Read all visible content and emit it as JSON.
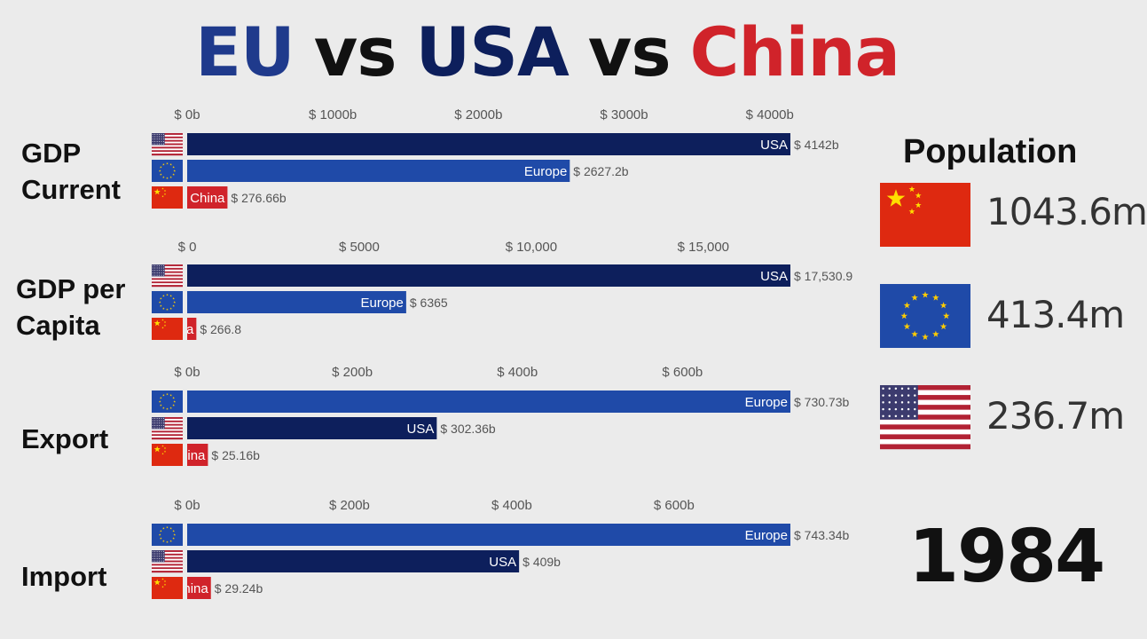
{
  "title": {
    "parts": [
      {
        "text": "EU",
        "color": "#1f3a8c"
      },
      {
        "text": "vs",
        "color": "#111111"
      },
      {
        "text": "USA",
        "color": "#0d1f5c"
      },
      {
        "text": "vs",
        "color": "#111111"
      },
      {
        "text": "China",
        "color": "#d0232a"
      }
    ]
  },
  "colors": {
    "usa_bar": "#0d1f5c",
    "europe_bar": "#1f4aa8",
    "china_bar": "#d0232a",
    "value_text": "#555555"
  },
  "chart_data": [
    {
      "type": "bar",
      "title": "GDP Current",
      "tick_labels": [
        "$ 0b",
        "$ 1000b",
        "$ 2000b",
        "$ 3000b",
        "$ 4000b"
      ],
      "tick_values": [
        0,
        1000,
        2000,
        3000,
        4000
      ],
      "xlim": [
        0,
        4142
      ],
      "bars": [
        {
          "country": "usa",
          "label": "USA",
          "value": 4142,
          "value_label": "$ 4142b"
        },
        {
          "country": "europe",
          "label": "Europe",
          "value": 2627.2,
          "value_label": "$ 2627.2b"
        },
        {
          "country": "china",
          "label": "China",
          "value": 276.66,
          "value_label": "$ 276.66b"
        }
      ]
    },
    {
      "type": "bar",
      "title": "GDP per Capita",
      "tick_labels": [
        "$ 0",
        "$ 5000",
        "$ 10,000",
        "$ 15,000"
      ],
      "tick_values": [
        0,
        5000,
        10000,
        15000
      ],
      "xlim": [
        0,
        17530.9
      ],
      "bars": [
        {
          "country": "usa",
          "label": "USA",
          "value": 17530.9,
          "value_label": "$ 17,530.9"
        },
        {
          "country": "europe",
          "label": "Europe",
          "value": 6365,
          "value_label": "$ 6365"
        },
        {
          "country": "china",
          "label": "a",
          "value": 266.8,
          "value_label": "$ 266.8"
        }
      ]
    },
    {
      "type": "bar",
      "title": "Export",
      "tick_labels": [
        "$ 0b",
        "$ 200b",
        "$ 400b",
        "$ 600b"
      ],
      "tick_values": [
        0,
        200,
        400,
        600
      ],
      "xlim": [
        0,
        730.73
      ],
      "bars": [
        {
          "country": "europe",
          "label": "Europe",
          "value": 730.73,
          "value_label": "$ 730.73b"
        },
        {
          "country": "usa",
          "label": "USA",
          "value": 302.36,
          "value_label": "$ 302.36b"
        },
        {
          "country": "china",
          "label": "ina",
          "value": 25.16,
          "value_label": "$ 25.16b"
        }
      ]
    },
    {
      "type": "bar",
      "title": "Import",
      "tick_labels": [
        "$ 0b",
        "$ 200b",
        "$ 400b",
        "$ 600b"
      ],
      "tick_values": [
        0,
        200,
        400,
        600
      ],
      "xlim": [
        0,
        743.34
      ],
      "bars": [
        {
          "country": "europe",
          "label": "Europe",
          "value": 743.34,
          "value_label": "$ 743.34b"
        },
        {
          "country": "usa",
          "label": "USA",
          "value": 409,
          "value_label": "$ 409b"
        },
        {
          "country": "china",
          "label": "hina",
          "value": 29.24,
          "value_label": "$ 29.24b"
        }
      ]
    }
  ],
  "metric_labels": [
    [
      "GDP",
      "Current"
    ],
    [
      "GDP per",
      "Capita"
    ],
    [
      "Export"
    ],
    [
      "Import"
    ]
  ],
  "population": {
    "title": "Population",
    "items": [
      {
        "country": "china",
        "value": "1043.6m"
      },
      {
        "country": "europe",
        "value": "413.4m"
      },
      {
        "country": "usa",
        "value": "236.7m"
      }
    ]
  },
  "year": "1984"
}
